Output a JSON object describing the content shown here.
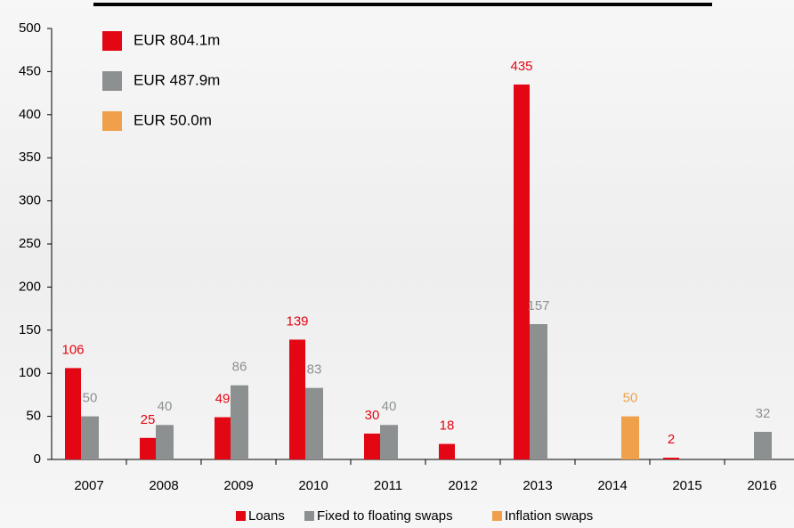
{
  "chart_data": {
    "type": "bar",
    "categories": [
      "2007",
      "2008",
      "2009",
      "2010",
      "2011",
      "2012",
      "2013",
      "2014",
      "2015",
      "2016"
    ],
    "series": [
      {
        "name": "Loans",
        "color": "#e30613",
        "values": [
          106,
          25,
          49,
          139,
          30,
          18,
          435,
          null,
          2,
          null
        ]
      },
      {
        "name": "Fixed to floating swaps",
        "color": "#8c9091",
        "values": [
          50,
          40,
          86,
          83,
          40,
          null,
          157,
          null,
          null,
          32
        ]
      },
      {
        "name": "Inflation swaps",
        "color": "#f0a04b",
        "values": [
          null,
          null,
          null,
          null,
          null,
          null,
          null,
          50,
          null,
          null
        ]
      }
    ],
    "annotations": [
      {
        "text": "EUR 804.1m",
        "color": "#e30613"
      },
      {
        "text": "EUR 487.9m",
        "color": "#8c9091"
      },
      {
        "text": "EUR 50.0m",
        "color": "#f0a04b"
      }
    ],
    "ylim": [
      0,
      500
    ],
    "yticks": [
      0,
      50,
      100,
      150,
      200,
      250,
      300,
      350,
      400,
      450,
      500
    ],
    "grid": false,
    "legend": "bottom"
  }
}
